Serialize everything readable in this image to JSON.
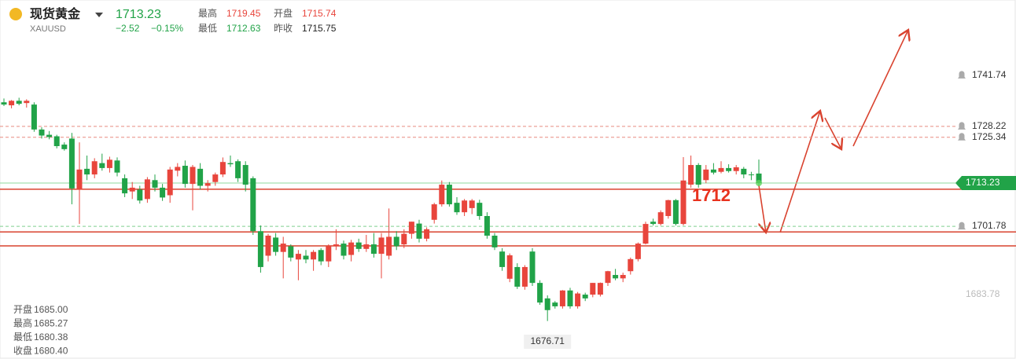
{
  "header": {
    "name": "现货黄金",
    "symbol": "XAUUSD",
    "price": "1713.23",
    "change": "−2.52",
    "change_pct": "−0.15%",
    "stats": [
      {
        "label": "最高",
        "value": "1719.45"
      },
      {
        "label": "开盘",
        "value": "1715.74"
      },
      {
        "label": "最低",
        "value": "1712.63"
      },
      {
        "label": "昨收",
        "value": "1715.75"
      }
    ]
  },
  "hover_info": [
    {
      "label": "开盘",
      "value": "1685.00"
    },
    {
      "label": "最高",
      "value": "1685.27"
    },
    {
      "label": "最低",
      "value": "1680.38"
    },
    {
      "label": "收盘",
      "value": "1680.40"
    }
  ],
  "chart_data": {
    "type": "candlestick",
    "up_color": "#e8453c",
    "down_color": "#21a348",
    "ylim": [
      1666.66,
      1761.67
    ],
    "open": [
      1734.6,
      1733.8,
      1735.0,
      1734.4,
      1734.0,
      1727.4,
      1726.0,
      1725.6,
      1723.4,
      1725.0,
      1711.5,
      1717.0,
      1715.5,
      1718.5,
      1717.2,
      1719.2,
      1714.5,
      1711.0,
      1711.5,
      1709.0,
      1714.0,
      1712.0,
      1710.0,
      1716.5,
      1717.8,
      1713.0,
      1717.0,
      1712.5,
      1713.5,
      1715.5,
      1718.5,
      1719.0,
      1718.0,
      1714.5,
      1700.5,
      1694.0,
      1698.8,
      1695.0,
      1696.5,
      1693.0,
      1694.0,
      1693.0,
      1695.5,
      1692.5,
      1696.6,
      1697.2,
      1694.2,
      1697.5,
      1695.8,
      1697.0,
      1694.5,
      1694.0,
      1699.0,
      1697.0,
      1699.8,
      1702.5,
      1698.5,
      1703.5,
      1707.6,
      1712.8,
      1708.0,
      1705.5,
      1706.6,
      1708.0,
      1704.5,
      1699.3,
      1695.1,
      1687.9,
      1691.0,
      1685.8,
      1695.1,
      1686.8,
      1682.7,
      1681.6,
      1680.6,
      1684.8,
      1680.6,
      1683.7,
      1683.7,
      1683.7,
      1686.8,
      1688.9,
      1688.0,
      1689.9,
      1693.1,
      1697.2,
      1703.0,
      1702.4,
      1704.5,
      1708.7,
      1702.4,
      1712.8,
      1718.0,
      1714.0,
      1716.8,
      1716.2,
      1717.2,
      1716.4,
      1717.0,
      1715.5,
      1715.74
    ],
    "high": [
      1735.6,
      1735.2,
      1735.8,
      1735.4,
      1734.6,
      1728.0,
      1727.0,
      1726.0,
      1724.0,
      1726.5,
      1724.0,
      1720.5,
      1719.8,
      1721.0,
      1720.2,
      1720.0,
      1715.5,
      1713.5,
      1712.5,
      1714.8,
      1715.5,
      1713.0,
      1717.5,
      1718.5,
      1719.2,
      1718.0,
      1718.5,
      1714.0,
      1716.0,
      1720.0,
      1720.5,
      1719.5,
      1719.0,
      1715.0,
      1702.0,
      1699.8,
      1700.0,
      1699.0,
      1697.0,
      1695.5,
      1695.5,
      1695.5,
      1696.0,
      1697.0,
      1701.0,
      1698.0,
      1698.2,
      1698.5,
      1699.5,
      1700.0,
      1700.0,
      1706.5,
      1700.5,
      1701.0,
      1703.0,
      1703.5,
      1701.5,
      1708.0,
      1713.9,
      1713.5,
      1709.5,
      1709.0,
      1709.0,
      1708.8,
      1705.5,
      1700.0,
      1696.0,
      1694.6,
      1692.0,
      1691.5,
      1696.0,
      1687.5,
      1683.5,
      1682.0,
      1684.9,
      1685.5,
      1684.4,
      1684.2,
      1686.8,
      1686.9,
      1690.0,
      1690.5,
      1689.5,
      1693.5,
      1697.5,
      1703.0,
      1703.8,
      1706.0,
      1708.8,
      1709.0,
      1720.1,
      1720.5,
      1718.5,
      1718.0,
      1718.5,
      1719.0,
      1718.2,
      1718.0,
      1717.5,
      1716.2,
      1719.45
    ],
    "low": [
      1733.6,
      1733.0,
      1733.8,
      1733.2,
      1726.8,
      1725.0,
      1724.8,
      1722.4,
      1721.8,
      1707.6,
      1702.4,
      1714.0,
      1714.5,
      1716.5,
      1716.0,
      1715.0,
      1709.5,
      1709.0,
      1707.8,
      1708.0,
      1711.0,
      1708.5,
      1708.0,
      1715.0,
      1712.0,
      1706.0,
      1711.5,
      1711.0,
      1712.5,
      1714.8,
      1717.5,
      1713.5,
      1711.0,
      1699.5,
      1689.5,
      1692.5,
      1694.0,
      1688.0,
      1692.5,
      1687.5,
      1692.0,
      1690.0,
      1691.5,
      1691.0,
      1695.5,
      1693.0,
      1692.5,
      1695.0,
      1695.0,
      1693.5,
      1688.0,
      1693.0,
      1695.5,
      1696.0,
      1698.5,
      1697.5,
      1697.8,
      1702.5,
      1707.0,
      1707.0,
      1704.8,
      1704.5,
      1705.0,
      1703.5,
      1698.5,
      1695.5,
      1690.0,
      1687.0,
      1685.2,
      1685.0,
      1686.0,
      1681.0,
      1676.71,
      1680.0,
      1680.0,
      1680.0,
      1680.0,
      1682.0,
      1683.0,
      1683.2,
      1686.0,
      1687.5,
      1687.0,
      1689.0,
      1692.5,
      1697.0,
      1702.0,
      1702.0,
      1703.8,
      1702.0,
      1702.0,
      1712.0,
      1712.0,
      1713.2,
      1715.5,
      1715.8,
      1716.0,
      1715.5,
      1714.5,
      1714.0,
      1712.63
    ],
    "close": [
      1734.0,
      1735.0,
      1734.2,
      1735.0,
      1727.4,
      1725.8,
      1725.4,
      1723.0,
      1722.2,
      1711.8,
      1716.8,
      1715.5,
      1719.0,
      1717.2,
      1719.4,
      1716.0,
      1710.5,
      1712.0,
      1708.6,
      1714.2,
      1712.0,
      1709.4,
      1716.8,
      1717.5,
      1713.0,
      1717.5,
      1712.5,
      1713.2,
      1715.5,
      1718.8,
      1718.2,
      1714.5,
      1712.8,
      1700.5,
      1691.0,
      1699.3,
      1695.0,
      1697.2,
      1693.5,
      1694.5,
      1693.0,
      1695.0,
      1692.5,
      1696.6,
      1697.0,
      1694.0,
      1697.5,
      1695.8,
      1697.0,
      1694.5,
      1698.8,
      1699.0,
      1696.5,
      1699.8,
      1703.0,
      1698.5,
      1701.0,
      1707.6,
      1712.8,
      1707.6,
      1705.5,
      1708.6,
      1708.6,
      1704.5,
      1699.3,
      1696.2,
      1691.0,
      1694.1,
      1685.8,
      1691.0,
      1686.8,
      1681.6,
      1679.6,
      1680.6,
      1684.8,
      1680.6,
      1684.0,
      1682.7,
      1686.8,
      1686.8,
      1689.9,
      1688.0,
      1688.9,
      1693.1,
      1697.2,
      1702.4,
      1702.4,
      1705.5,
      1708.7,
      1702.4,
      1713.9,
      1718.0,
      1712.8,
      1716.8,
      1716.0,
      1717.2,
      1716.4,
      1717.4,
      1715.5,
      1715.4,
      1713.23
    ],
    "support_lines": [
      1711.6,
      1700.3,
      1696.6
    ],
    "support_color": "#d9432f",
    "target_label": "1712",
    "alerts": [
      1741.74,
      1728.22,
      1725.34,
      1701.78
    ],
    "last_price": 1713.23,
    "axis_label": 1683.78,
    "low_label": 1676.71
  }
}
